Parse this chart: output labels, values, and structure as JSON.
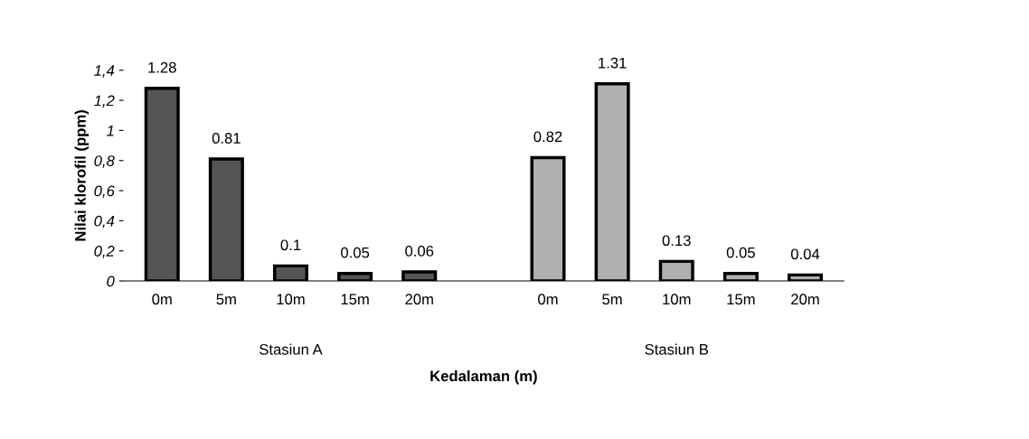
{
  "chart_data": {
    "type": "bar",
    "categories": [
      "0m",
      "5m",
      "10m",
      "15m",
      "20m",
      null,
      "0m",
      "5m",
      "10m",
      "15m",
      "20m"
    ],
    "values": [
      1.28,
      0.81,
      0.1,
      0.05,
      0.06,
      null,
      0.82,
      1.31,
      0.13,
      0.05,
      0.04
    ],
    "colors": [
      "#555555",
      "#555555",
      "#555555",
      "#555555",
      "#555555",
      "#555555",
      "#b0b0b0",
      "#b0b0b0",
      "#b0b0b0",
      "#b0b0b0",
      "#b0b0b0"
    ],
    "data_labels": true,
    "ylim": [
      0,
      1.4
    ],
    "yticks": [
      0,
      {
        "value": 0.2,
        "label": "0,2"
      },
      {
        "value": 0.4,
        "label": "0,4"
      },
      {
        "value": 0.6,
        "label": "0,6"
      },
      {
        "value": 0.8,
        "label": "0,8"
      },
      1,
      {
        "value": 1.2,
        "label": "1,2"
      },
      {
        "value": 1.4,
        "label": "1,4"
      }
    ],
    "ylabel": "Nilai klorofil (ppm)",
    "xlabel": "Kedalaman (m)",
    "annotations": [
      "Stasiun A",
      "Stasiun B"
    ],
    "grid": false,
    "legend": false
  }
}
